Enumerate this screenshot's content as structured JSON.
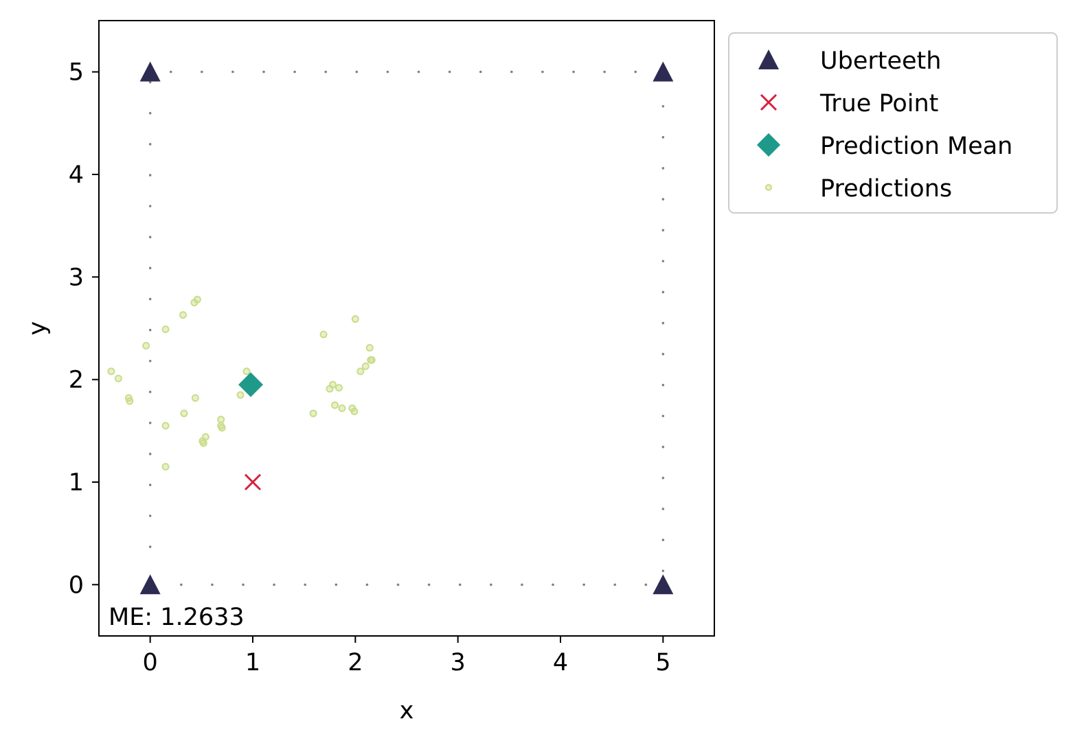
{
  "chart_data": {
    "type": "scatter",
    "xlabel": "x",
    "ylabel": "y",
    "xlim": [
      -0.5,
      5.5
    ],
    "ylim": [
      -0.5,
      5.5
    ],
    "x_ticks": [
      0,
      1,
      2,
      3,
      4,
      5
    ],
    "y_ticks": [
      0,
      1,
      2,
      3,
      4,
      5
    ],
    "grid": false,
    "legend_placement": "outside-top-right",
    "annotation": "ME: 1.2633",
    "boundary": {
      "style": "dotted",
      "color": "#808080",
      "corners": [
        [
          0,
          0
        ],
        [
          5,
          0
        ],
        [
          5,
          5
        ],
        [
          0,
          5
        ]
      ]
    },
    "series": [
      {
        "name": "Uberteeth",
        "marker": "triangle",
        "color": "#2e2b52",
        "points": [
          [
            0,
            5
          ],
          [
            5,
            5
          ],
          [
            0,
            0
          ],
          [
            5,
            0
          ]
        ]
      },
      {
        "name": "True Point",
        "marker": "x",
        "color": "#d6213f",
        "points": [
          [
            1,
            1
          ]
        ]
      },
      {
        "name": "Prediction Mean",
        "marker": "diamond",
        "color": "#1f9a8a",
        "points": [
          [
            0.98,
            1.95
          ]
        ]
      },
      {
        "name": "Predictions",
        "marker": "circle",
        "color": "#c9dd8a",
        "points": [
          [
            -0.38,
            2.08
          ],
          [
            -0.31,
            2.01
          ],
          [
            -0.21,
            1.82
          ],
          [
            -0.2,
            1.79
          ],
          [
            -0.04,
            2.33
          ],
          [
            0.15,
            2.49
          ],
          [
            0.15,
            1.55
          ],
          [
            0.15,
            1.15
          ],
          [
            0.32,
            2.63
          ],
          [
            0.33,
            1.67
          ],
          [
            0.43,
            2.75
          ],
          [
            0.46,
            2.78
          ],
          [
            0.44,
            1.82
          ],
          [
            0.51,
            1.4
          ],
          [
            0.52,
            1.38
          ],
          [
            0.54,
            1.44
          ],
          [
            0.69,
            1.61
          ],
          [
            0.69,
            1.55
          ],
          [
            0.7,
            1.53
          ],
          [
            0.88,
            1.85
          ],
          [
            0.94,
            2.08
          ],
          [
            1.59,
            1.67
          ],
          [
            1.69,
            2.44
          ],
          [
            1.75,
            1.91
          ],
          [
            1.78,
            1.95
          ],
          [
            1.84,
            1.92
          ],
          [
            1.8,
            1.75
          ],
          [
            1.87,
            1.72
          ],
          [
            1.97,
            1.72
          ],
          [
            1.99,
            1.69
          ],
          [
            2.0,
            2.59
          ],
          [
            2.05,
            2.08
          ],
          [
            2.1,
            2.13
          ],
          [
            2.14,
            2.31
          ],
          [
            2.15,
            2.19
          ],
          [
            2.16,
            2.19
          ]
        ]
      }
    ]
  }
}
